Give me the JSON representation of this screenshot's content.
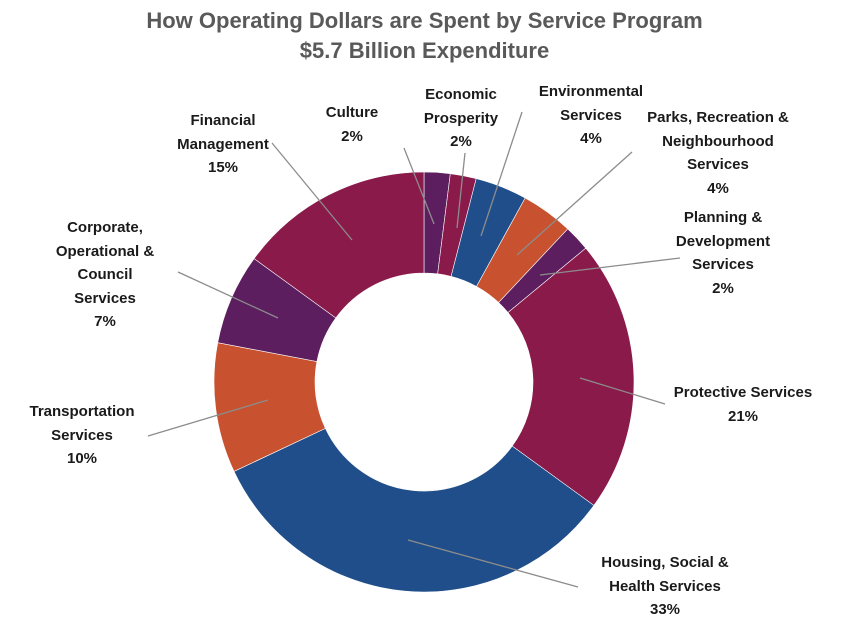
{
  "chart_data": {
    "type": "pie",
    "variant": "donut",
    "title": "How Operating Dollars are Spent by Service Program",
    "subtitle": "$5.7 Billion Expenditure",
    "start": "top, clockwise",
    "slices": [
      {
        "label": "Culture",
        "value": 2,
        "color": "#5c1e5e"
      },
      {
        "label": "Economic Prosperity",
        "value": 2,
        "color": "#8a1a4a"
      },
      {
        "label": "Environmental Services",
        "value": 4,
        "color": "#1f4e8a"
      },
      {
        "label": "Parks, Recreation & Neighbourhood Services",
        "value": 4,
        "color": "#c8512f"
      },
      {
        "label": "Planning & Development Services",
        "value": 2,
        "color": "#5c1e5e"
      },
      {
        "label": "Protective Services",
        "value": 21,
        "color": "#8a1a4a"
      },
      {
        "label": "Housing, Social & Health Services",
        "value": 33,
        "color": "#1f4e8a"
      },
      {
        "label": "Transportation Services",
        "value": 10,
        "color": "#c8512f"
      },
      {
        "label": "Corporate, Operational & Council Services",
        "value": 7,
        "color": "#5c1e5e"
      },
      {
        "label": "Financial Management",
        "value": 15,
        "color": "#8a1a4a"
      }
    ],
    "data_labels": [
      [
        "Culture",
        "2%"
      ],
      [
        "Economic",
        "Prosperity",
        "2%"
      ],
      [
        "Environmental",
        "Services",
        "4%"
      ],
      [
        "Parks, Recreation &",
        "Neighbourhood",
        "Services",
        "4%"
      ],
      [
        "Planning &",
        "Development",
        "Services",
        "2%"
      ],
      [
        "Protective Services",
        "21%"
      ],
      [
        "Housing, Social &",
        "Health Services",
        "33%"
      ],
      [
        "Transportation",
        "Services",
        "10%"
      ],
      [
        "Corporate,",
        "Operational &",
        "Council",
        "Services",
        "7%"
      ],
      [
        "Financial",
        "Management",
        "15%"
      ]
    ],
    "leader_line_color": "#8c8c8c"
  }
}
